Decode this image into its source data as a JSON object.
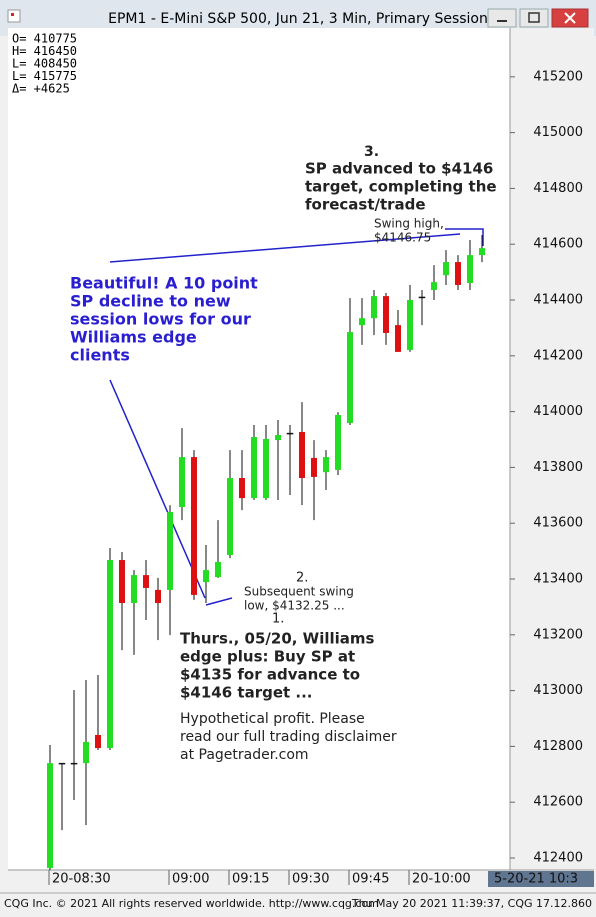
{
  "window": {
    "title": "EPM1 - E-Mini S&P 500, Jun 21, 3 Min, Primary Session"
  },
  "chart_data": {
    "type": "candlestick",
    "categories": [
      "20-08:30",
      null,
      null,
      null,
      null,
      null,
      null,
      null,
      null,
      null,
      "09:00",
      null,
      null,
      null,
      null,
      "09:15",
      null,
      null,
      null,
      null,
      "09:30",
      null,
      null,
      null,
      null,
      "09:45",
      null,
      null,
      null,
      null,
      "20-10:00",
      null,
      null,
      null,
      null,
      null,
      null
    ],
    "open": [
      412364,
      412740,
      412740,
      412740,
      412841,
      412794,
      413468,
      413314,
      413414,
      413361,
      413361,
      413658,
      413837,
      413389,
      413407,
      413486,
      413762,
      413690,
      413690,
      413898,
      413923,
      413927,
      413834,
      413783,
      413791,
      413959,
      414310,
      414335,
      414414,
      414310,
      414221,
      414411,
      414436,
      414489,
      414536,
      414461,
      414561
    ],
    "high": [
      412805,
      412740,
      413002,
      413038,
      413056,
      413511,
      413497,
      413432,
      413468,
      413404,
      413665,
      413941,
      413862,
      413522,
      413611,
      413862,
      413862,
      413952,
      413952,
      413970,
      413952,
      414034,
      413898,
      413862,
      413998,
      414407,
      414407,
      414436,
      414425,
      414364,
      414454,
      414436,
      414525,
      414579,
      414561,
      414615,
      414633
    ],
    "low": [
      412357,
      412500,
      412608,
      412518,
      412787,
      412787,
      413145,
      413128,
      413253,
      413181,
      413199,
      413611,
      413325,
      413314,
      413404,
      413475,
      413647,
      413683,
      413683,
      413683,
      413701,
      413665,
      413611,
      413719,
      413773,
      413952,
      414239,
      414274,
      414239,
      414214,
      414214,
      414310,
      414400,
      414454,
      414436,
      414436,
      414536
    ],
    "close": [
      412740,
      412740,
      412740,
      412816,
      412794,
      413468,
      413314,
      413414,
      413368,
      413314,
      413640,
      413837,
      413343,
      413432,
      413461,
      413762,
      413690,
      413909,
      413902,
      413916,
      413923,
      413762,
      413766,
      413837,
      413988,
      414285,
      414335,
      414414,
      414282,
      414214,
      414400,
      414411,
      414464,
      414536,
      414454,
      414561,
      414586
    ],
    "up_color": "#22dd22",
    "down_color": "#dd1111",
    "ylim": [
      412357,
      415375
    ],
    "yticks": [
      412400,
      412600,
      412800,
      413000,
      413200,
      413400,
      413600,
      413800,
      414000,
      414200,
      414400,
      414600,
      414800,
      415000,
      415200
    ],
    "info_box": [
      "O=  410775",
      "H=  416450",
      "L=  408450",
      "L=  415775",
      "Δ=   +4625"
    ],
    "annotations": [
      {
        "lines": [
          "3."
        ]
      },
      {
        "lines": [
          "SP advanced to $4146",
          "target, completing the",
          "forecast/trade"
        ]
      },
      {
        "lines": [
          "Swing high,",
          "$4146.75"
        ]
      },
      {
        "lines": [
          "Beautiful! A 10 point",
          "SP decline to new",
          "session lows for our",
          "Williams edge",
          "clients"
        ]
      },
      {
        "lines": [
          "2."
        ]
      },
      {
        "lines": [
          "Subsequent swing",
          "low, $4132.25 ..."
        ]
      },
      {
        "lines": [
          "1."
        ]
      },
      {
        "lines": [
          "Thurs., 05/20, Williams",
          "edge plus: Buy SP at",
          "$4135 for advance to",
          "$4146 target ..."
        ]
      },
      {
        "lines": [
          "Hypothetical profit. Please",
          "read our full trading disclaimer",
          "at Pagetrader.com"
        ]
      }
    ]
  },
  "status": {
    "date_box": "5-20-21 10:3",
    "copyright": "CQG Inc. © 2021 All rights reserved worldwide. http://www.cqg.com",
    "timestamp": "Thu May 20 2021 11:39:37, CQG 17.12.860"
  }
}
